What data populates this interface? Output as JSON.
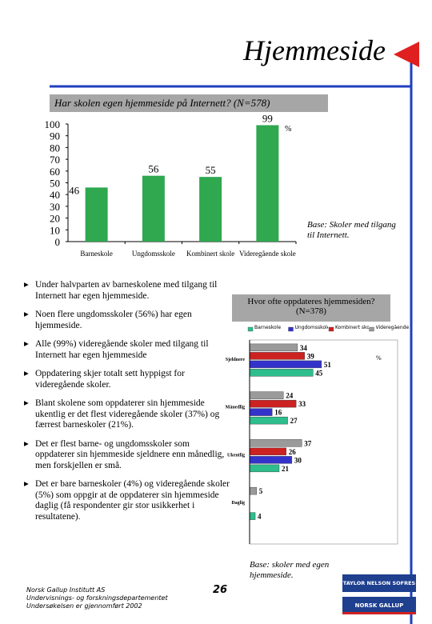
{
  "title": "Hjemmeside",
  "chart_data": [
    {
      "type": "bar",
      "title": "Har skolen egen hjemmeside på Internett? (N=578)",
      "categories": [
        "Barneskole",
        "Ungdomsskole",
        "Kombinert skole",
        "Videregående skole"
      ],
      "values": [
        46,
        56,
        55,
        99
      ],
      "color": "#2fa84f",
      "unit": "%",
      "ylim": [
        0,
        100
      ],
      "yticks": [
        0,
        10,
        20,
        30,
        40,
        50,
        60,
        70,
        80,
        90,
        100
      ],
      "note": "Base: Skoler med tilgang til Internett."
    },
    {
      "type": "hbar",
      "title": "Hvor ofte oppdateres hjemmesiden? (N=378)",
      "categories": [
        "Sjeldnere",
        "Månedlig",
        "Ukentlig",
        "Daglig"
      ],
      "series": [
        {
          "name": "Barneskole",
          "color": "#2ebd8c",
          "values": [
            45,
            27,
            21,
            4
          ]
        },
        {
          "name": "Ungdomsskole",
          "color": "#3333cc",
          "values": [
            51,
            16,
            30,
            null
          ]
        },
        {
          "name": "Kombinert skole",
          "color": "#cc2222",
          "values": [
            39,
            33,
            26,
            null
          ]
        },
        {
          "name": "Videregående skole",
          "color": "#9a9a9a",
          "values": [
            34,
            24,
            37,
            5
          ]
        }
      ],
      "xlim": [
        0,
        105
      ],
      "unit": "%",
      "note": "Base: skoler med egen hjemmeside."
    }
  ],
  "bullets": [
    "Under halvparten av barneskolene med tilgang til Internett har egen hjemmeside.",
    "Noen flere ungdomsskoler (56%) har egen hjemmeside.",
    "Alle (99%) videregående skoler med tilgang til Internett har egen hjemmeside",
    "Oppdatering skjer totalt sett hyppigst for videregående skoler.",
    "Blant skolene som oppdaterer sin hjemmeside ukentlig er det flest videregående skoler (37%) og færrest barneskoler (21%).",
    "Det er flest barne- og ungdomsskoler som oppdaterer sin hjemmeside sjeldnere enn månedlig, men forskjellen er små.",
    "Det er bare barneskoler (4%) og videregående skoler (5%) som oppgir at de oppdaterer sin hjemmeside daglig (få respondenter gir stor usikkerhet i resultatene)."
  ],
  "footer": [
    "Norsk Gallup Institutt AS",
    "Undervisnings- og forskningsdepartementet",
    "Undersøkelsen er gjennomført 2002"
  ],
  "page_number": "26",
  "logo": [
    "TAYLOR NELSON SOFRES",
    "NORSK GALLUP"
  ]
}
